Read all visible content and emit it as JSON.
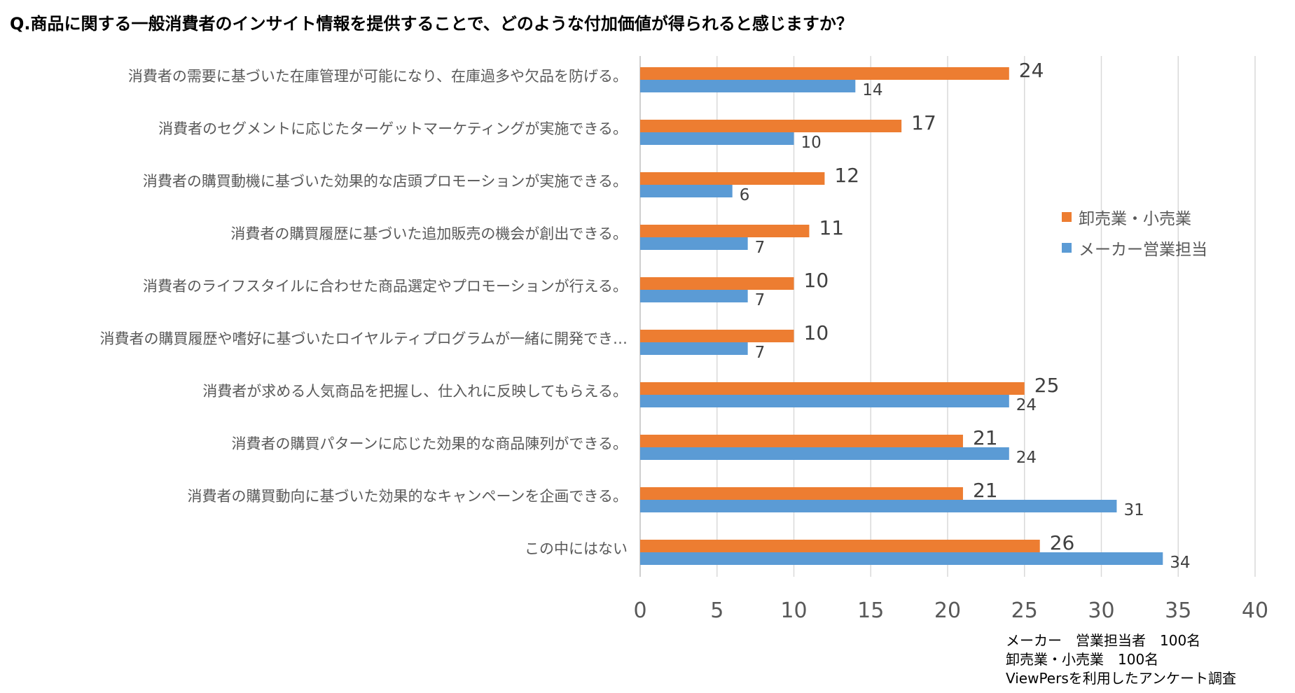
{
  "title": "Q.商品に関する一般消費者のインサイト情報を提供することで、どのような付加価値が得られると感じますか？",
  "chart_data": {
    "type": "bar",
    "orientation": "horizontal",
    "categories": [
      "消費者の需要に基づいた在庫管理が可能になり、在庫過多や欠品を防げる。",
      "消費者のセグメントに応じたターゲットマーケティングが実施できる。",
      "消費者の購買動機に基づいた効果的な店頭プロモーションが実施できる。",
      "消費者の購買履歴に基づいた追加販売の機会が創出できる。",
      "消費者のライフスタイルに合わせた商品選定やプロモーションが行える。",
      "消費者の購買履歴や嗜好に基づいたロイヤルティプログラムが一緒に開発でき…",
      "消費者が求める人気商品を把握し、仕入れに反映してもらえる。",
      "消費者の購買パターンに応じた効果的な商品陳列ができる。",
      "消費者の購買動向に基づいた効果的なキャンペーンを企画できる。",
      "この中にはない"
    ],
    "series": [
      {
        "name": "卸売業・小売業",
        "color": "#ED7D31",
        "values": [
          24,
          17,
          12,
          11,
          10,
          10,
          25,
          21,
          21,
          26
        ]
      },
      {
        "name": "メーカー営業担当",
        "color": "#5B9BD5",
        "values": [
          14,
          10,
          6,
          7,
          7,
          7,
          24,
          24,
          31,
          34
        ]
      }
    ],
    "xlim": [
      0,
      40
    ],
    "xticks": [
      0,
      5,
      10,
      15,
      20,
      25,
      30,
      35,
      40
    ],
    "grid": true,
    "legend_position": "right"
  },
  "footnote": [
    "メーカー　営業担当者　100名",
    "卸売業・小売業　100名",
    "ViewPersを利用したアンケート調査"
  ]
}
